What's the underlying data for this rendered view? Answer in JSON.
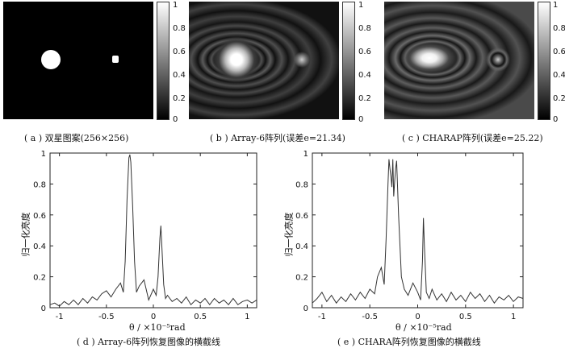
{
  "captions": {
    "a": "( a ) 双星图案(256×256)",
    "b": "( b ) Array-6阵列(误差e=21.34)",
    "c": "( c ) CHARAP阵列(误差e=25.22)",
    "d": "( d ) Array-6阵列恢复图像的横截线",
    "e": "( e ) CHARA阵列恢复图像的横截线"
  },
  "colorbar_ticks": [
    "1",
    "0.8",
    "0.6",
    "0.4",
    "0.2",
    "0"
  ],
  "plot_labels": {
    "ylabel": "归一化亮度",
    "xlabel": "θ / ×10⁻⁵rad",
    "yticks": [
      "1",
      "0.8",
      "0.6",
      "0.4",
      "0.2",
      "0"
    ],
    "xticks": [
      "-1",
      "-0.5",
      "0",
      "0.5",
      "1"
    ]
  },
  "chart_data": [
    {
      "type": "line",
      "title": "( d ) Array-6阵列恢复图像的横截线",
      "xlabel": "θ / ×10⁻⁵rad",
      "ylabel": "归一化亮度",
      "xlim": [
        -1.1,
        1.1
      ],
      "ylim": [
        0,
        1
      ],
      "x": [
        -1.1,
        -1.05,
        -1.0,
        -0.95,
        -0.9,
        -0.85,
        -0.8,
        -0.75,
        -0.7,
        -0.65,
        -0.6,
        -0.55,
        -0.5,
        -0.45,
        -0.4,
        -0.35,
        -0.32,
        -0.3,
        -0.28,
        -0.26,
        -0.25,
        -0.24,
        -0.22,
        -0.2,
        -0.18,
        -0.15,
        -0.1,
        -0.05,
        0.0,
        0.03,
        0.05,
        0.07,
        0.08,
        0.09,
        0.11,
        0.13,
        0.15,
        0.2,
        0.25,
        0.3,
        0.35,
        0.4,
        0.45,
        0.5,
        0.55,
        0.6,
        0.65,
        0.7,
        0.75,
        0.8,
        0.85,
        0.9,
        0.95,
        1.0,
        1.05,
        1.1
      ],
      "y": [
        0.02,
        0.03,
        0.01,
        0.04,
        0.02,
        0.05,
        0.02,
        0.06,
        0.03,
        0.07,
        0.05,
        0.09,
        0.11,
        0.07,
        0.12,
        0.16,
        0.1,
        0.3,
        0.7,
        0.97,
        0.99,
        0.94,
        0.65,
        0.3,
        0.1,
        0.14,
        0.18,
        0.05,
        0.12,
        0.08,
        0.2,
        0.45,
        0.53,
        0.4,
        0.15,
        0.06,
        0.08,
        0.04,
        0.06,
        0.03,
        0.07,
        0.02,
        0.05,
        0.03,
        0.06,
        0.02,
        0.06,
        0.03,
        0.05,
        0.02,
        0.06,
        0.02,
        0.04,
        0.05,
        0.03,
        0.05
      ]
    },
    {
      "type": "line",
      "title": "( e ) CHARA阵列恢复图像的横截线",
      "xlabel": "θ / ×10⁻⁵rad",
      "ylabel": "归一化亮度",
      "xlim": [
        -1.1,
        1.1
      ],
      "ylim": [
        0,
        1
      ],
      "x": [
        -1.1,
        -1.05,
        -1.0,
        -0.95,
        -0.9,
        -0.85,
        -0.8,
        -0.75,
        -0.7,
        -0.65,
        -0.6,
        -0.55,
        -0.5,
        -0.45,
        -0.42,
        -0.38,
        -0.35,
        -0.33,
        -0.31,
        -0.3,
        -0.29,
        -0.28,
        -0.27,
        -0.26,
        -0.25,
        -0.24,
        -0.23,
        -0.22,
        -0.2,
        -0.17,
        -0.14,
        -0.1,
        -0.05,
        0.0,
        0.03,
        0.05,
        0.06,
        0.07,
        0.09,
        0.12,
        0.15,
        0.2,
        0.25,
        0.3,
        0.35,
        0.4,
        0.45,
        0.5,
        0.55,
        0.6,
        0.65,
        0.7,
        0.75,
        0.8,
        0.85,
        0.9,
        0.95,
        1.0,
        1.05,
        1.1
      ],
      "y": [
        0.03,
        0.06,
        0.1,
        0.04,
        0.08,
        0.03,
        0.07,
        0.04,
        0.09,
        0.05,
        0.1,
        0.06,
        0.12,
        0.09,
        0.2,
        0.26,
        0.15,
        0.45,
        0.8,
        0.96,
        0.9,
        0.85,
        0.78,
        0.96,
        0.72,
        0.82,
        0.9,
        0.95,
        0.6,
        0.2,
        0.12,
        0.08,
        0.16,
        0.1,
        0.05,
        0.3,
        0.58,
        0.4,
        0.1,
        0.06,
        0.12,
        0.05,
        0.09,
        0.04,
        0.1,
        0.05,
        0.08,
        0.04,
        0.1,
        0.06,
        0.09,
        0.04,
        0.08,
        0.03,
        0.07,
        0.05,
        0.08,
        0.04,
        0.07,
        0.06
      ]
    }
  ]
}
